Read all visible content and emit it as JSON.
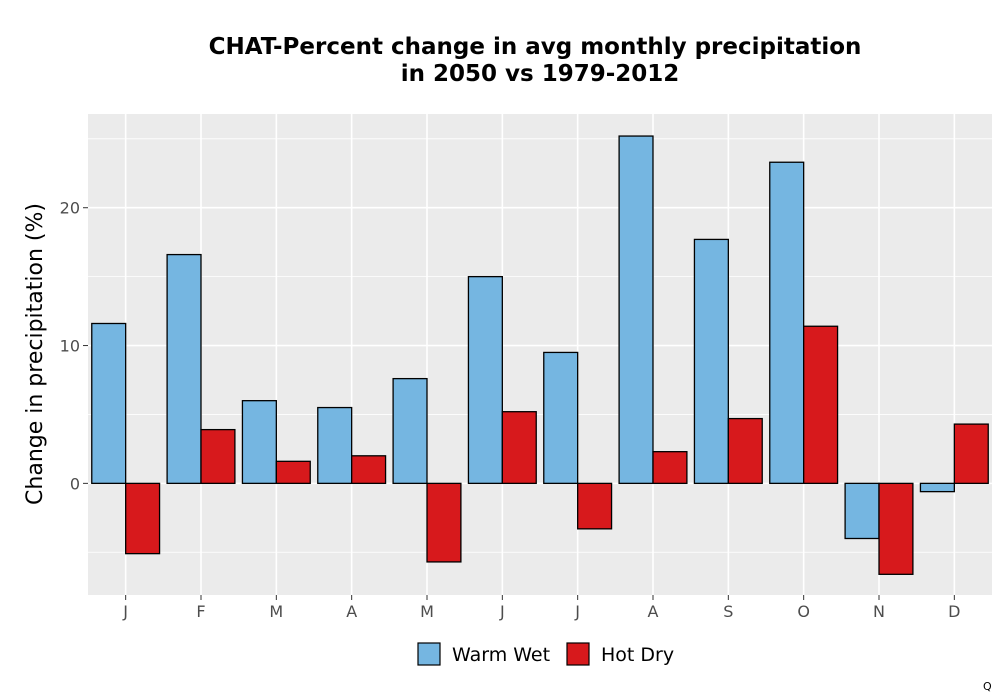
{
  "chart_data": {
    "type": "bar",
    "title": [
      "CHAT-Percent change in avg monthly precipitation",
      "in 2050 vs 1979-2012"
    ],
    "xlabel": "",
    "ylabel": "Change in precipitation (%)",
    "categories": [
      "J",
      "F",
      "M",
      "A",
      "M",
      "J",
      "J",
      "A",
      "S",
      "O",
      "N",
      "D"
    ],
    "series": [
      {
        "name": "Warm Wet",
        "color": "#75b6e1",
        "values": [
          11.6,
          16.6,
          6.0,
          5.5,
          7.6,
          15.0,
          9.5,
          25.2,
          17.7,
          23.3,
          -4.0,
          -0.6
        ]
      },
      {
        "name": "Hot Dry",
        "color": "#d7191c",
        "values": [
          -5.1,
          3.9,
          1.6,
          2.0,
          -5.7,
          5.2,
          -3.3,
          2.3,
          4.7,
          11.4,
          -6.6,
          4.3
        ]
      }
    ],
    "ylim": [
      -8.1,
      26.8
    ],
    "yticks": [
      0,
      10,
      20
    ],
    "grid": true,
    "legend_position": "bottom",
    "panel_background": "#ebebeb",
    "gridline_color": "#ffffff",
    "bar_outline_color": "#000000"
  },
  "corner_mark": "Q"
}
